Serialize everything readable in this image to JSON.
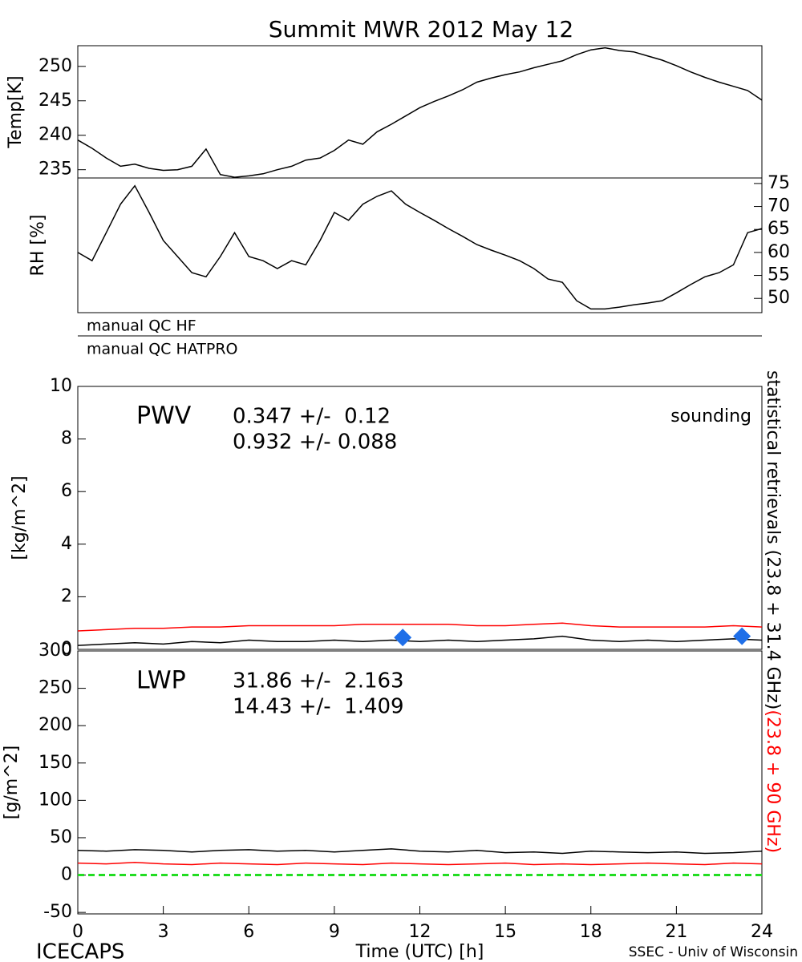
{
  "chart_data": [
    {
      "type": "line",
      "title": "Summit MWR 2012 May 12",
      "ylabel": "Temp[K]",
      "xlim": [
        0,
        24
      ],
      "ylim": [
        233.8,
        253
      ],
      "yticks": [
        235,
        240,
        245,
        250
      ],
      "x": [
        0,
        0.5,
        1,
        1.5,
        2,
        2.5,
        3,
        3.5,
        4,
        4.5,
        5,
        5.5,
        6,
        6.5,
        7,
        7.5,
        8,
        8.5,
        9,
        9.5,
        10,
        10.5,
        11,
        11.5,
        12,
        12.5,
        13,
        13.5,
        14,
        14.5,
        15,
        15.5,
        16,
        16.5,
        17,
        17.5,
        18,
        18.5,
        19,
        19.5,
        20,
        20.5,
        21,
        21.5,
        22,
        22.5,
        23,
        23.5,
        24
      ],
      "series": [
        {
          "color": "#000000",
          "values": [
            239.3,
            238.1,
            236.7,
            235.5,
            235.8,
            235.2,
            234.9,
            235.0,
            235.5,
            238.0,
            234.3,
            233.9,
            234.1,
            234.4,
            235.0,
            235.5,
            236.4,
            236.7,
            237.8,
            239.3,
            238.7,
            240.5,
            241.6,
            242.8,
            244.0,
            244.9,
            245.7,
            246.6,
            247.7,
            248.3,
            248.8,
            249.2,
            249.8,
            250.3,
            250.8,
            251.7,
            252.4,
            252.7,
            252.3,
            252.1,
            251.5,
            250.9,
            250.1,
            249.2,
            248.4,
            247.7,
            247.1,
            246.5,
            245.1
          ]
        }
      ]
    },
    {
      "type": "line",
      "ylabel": "RH [%]",
      "yaxis_side": "right",
      "xlim": [
        0,
        24
      ],
      "ylim": [
        46.9,
        76.2
      ],
      "yticks": [
        50,
        55,
        60,
        65,
        70,
        75
      ],
      "x": [
        0,
        0.5,
        1,
        1.5,
        2,
        2.5,
        3,
        3.5,
        4,
        4.5,
        5,
        5.5,
        6,
        6.5,
        7,
        7.5,
        8,
        8.5,
        9,
        9.5,
        10,
        10.5,
        11,
        11.5,
        12,
        12.5,
        13,
        13.5,
        14,
        14.5,
        15,
        15.5,
        16,
        16.5,
        17,
        17.5,
        18,
        18.5,
        19,
        19.5,
        20,
        20.5,
        21,
        21.5,
        22,
        22.5,
        23,
        23.5,
        24
      ],
      "series": [
        {
          "color": "#000000",
          "values": [
            60.0,
            58.2,
            64.3,
            70.5,
            74.5,
            68.7,
            62.6,
            59.1,
            55.6,
            54.7,
            59.1,
            64.3,
            59.1,
            58.2,
            56.5,
            58.2,
            57.3,
            62.6,
            68.7,
            67.0,
            70.5,
            72.2,
            73.4,
            70.5,
            68.7,
            67.0,
            65.2,
            63.5,
            61.7,
            60.5,
            59.4,
            58.2,
            56.5,
            54.2,
            53.5,
            49.5,
            47.7,
            47.7,
            48.1,
            48.6,
            49.0,
            49.5,
            51.2,
            53.0,
            54.7,
            55.6,
            57.3,
            64.3,
            65.2
          ]
        }
      ]
    },
    {
      "type": "line",
      "ylabel": "[kg/m^2]",
      "xlim": [
        0,
        24
      ],
      "ylim": [
        0,
        10
      ],
      "yticks": [
        0,
        2,
        4,
        6,
        8,
        10
      ],
      "annotations": [
        {
          "text": "PWV",
          "color": "#000000"
        },
        {
          "text": "0.347 +/-  0.12",
          "color": "#000000"
        },
        {
          "text": "0.932 +/- 0.088",
          "color": "#ff0000"
        }
      ],
      "x": [
        0,
        1,
        2,
        3,
        4,
        5,
        6,
        7,
        8,
        9,
        10,
        11,
        12,
        13,
        14,
        15,
        16,
        17,
        18,
        19,
        20,
        21,
        22,
        23,
        24
      ],
      "series": [
        {
          "name": "statistical retrievals (23.8 + 31.4 GHz)",
          "color": "#000000",
          "values": [
            0.15,
            0.2,
            0.25,
            0.2,
            0.3,
            0.25,
            0.35,
            0.3,
            0.3,
            0.35,
            0.3,
            0.35,
            0.3,
            0.35,
            0.3,
            0.35,
            0.4,
            0.5,
            0.35,
            0.3,
            0.35,
            0.3,
            0.35,
            0.4,
            0.35
          ]
        },
        {
          "name": "(23.8 + 90 GHz)",
          "color": "#ff0000",
          "values": [
            0.7,
            0.75,
            0.8,
            0.8,
            0.85,
            0.85,
            0.9,
            0.9,
            0.9,
            0.9,
            0.95,
            0.95,
            0.95,
            0.95,
            0.9,
            0.9,
            0.95,
            1.0,
            0.9,
            0.85,
            0.85,
            0.85,
            0.85,
            0.9,
            0.85
          ]
        }
      ],
      "points": {
        "name": "sounding",
        "color": "#1f6fe8",
        "x": [
          11.4,
          23.3
        ],
        "values": [
          0.45,
          0.5
        ]
      }
    },
    {
      "type": "line",
      "ylabel": "[g/m^2]",
      "xlabel": "Time (UTC) [h]",
      "xlim": [
        0,
        24
      ],
      "xticks": [
        0,
        3,
        6,
        9,
        12,
        15,
        18,
        21,
        24
      ],
      "ylim": [
        -52,
        300
      ],
      "yticks": [
        -50,
        0,
        50,
        100,
        150,
        200,
        250,
        300
      ],
      "hlines": [
        {
          "value": 0,
          "color": "#22dd22"
        }
      ],
      "annotations": [
        {
          "text": "LWP",
          "color": "#000000"
        },
        {
          "text": "31.86 +/-  2.163",
          "color": "#000000"
        },
        {
          "text": "14.43 +/-  1.409",
          "color": "#ff0000"
        }
      ],
      "x": [
        0,
        1,
        2,
        3,
        4,
        5,
        6,
        7,
        8,
        9,
        10,
        11,
        12,
        13,
        14,
        15,
        16,
        17,
        18,
        19,
        20,
        21,
        22,
        23,
        24
      ],
      "series": [
        {
          "color": "#000000",
          "values": [
            33,
            32,
            34,
            33,
            31,
            33,
            34,
            32,
            33,
            31,
            33,
            35,
            32,
            31,
            33,
            30,
            31,
            29,
            32,
            31,
            30,
            31,
            29,
            30,
            32
          ]
        },
        {
          "color": "#ff0000",
          "values": [
            16,
            15,
            17,
            15,
            14,
            16,
            15,
            14,
            16,
            15,
            14,
            16,
            15,
            14,
            15,
            16,
            14,
            15,
            14,
            15,
            16,
            15,
            14,
            16,
            15
          ]
        }
      ]
    }
  ],
  "qc_labels": [
    "manual QC HF",
    "manual QC HATPRO"
  ],
  "footer": {
    "left": "ICECAPS",
    "right": "SSEC - Univ of Wisconsin"
  }
}
